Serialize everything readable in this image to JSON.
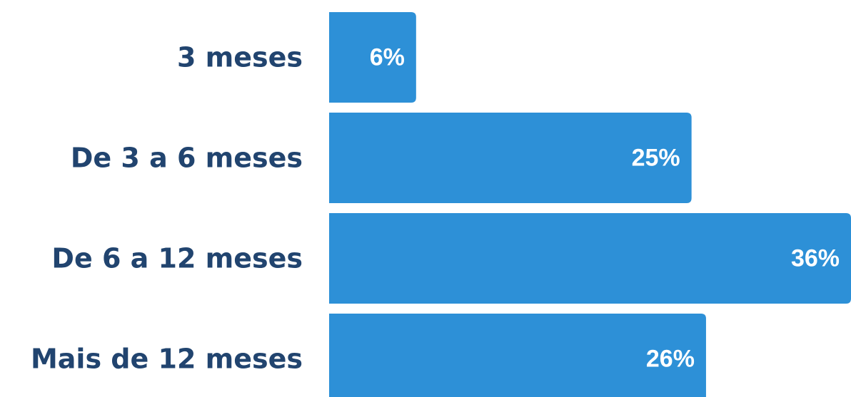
{
  "chart_data": {
    "type": "bar",
    "orientation": "horizontal",
    "categories": [
      "3 meses",
      "De 3 a 6 meses",
      "De 6 a 12 meses",
      "Mais de 12 meses"
    ],
    "values": [
      6,
      25,
      36,
      26
    ],
    "value_labels": [
      "6%",
      "25%",
      "36%",
      "26%"
    ],
    "title": "",
    "xlabel": "",
    "ylabel": "",
    "xlim": [
      0,
      36
    ],
    "grid": false,
    "legend": "none",
    "colors": {
      "bar": "#2d90d7",
      "category_text": "#21446f",
      "value_text": "#ffffff"
    }
  }
}
